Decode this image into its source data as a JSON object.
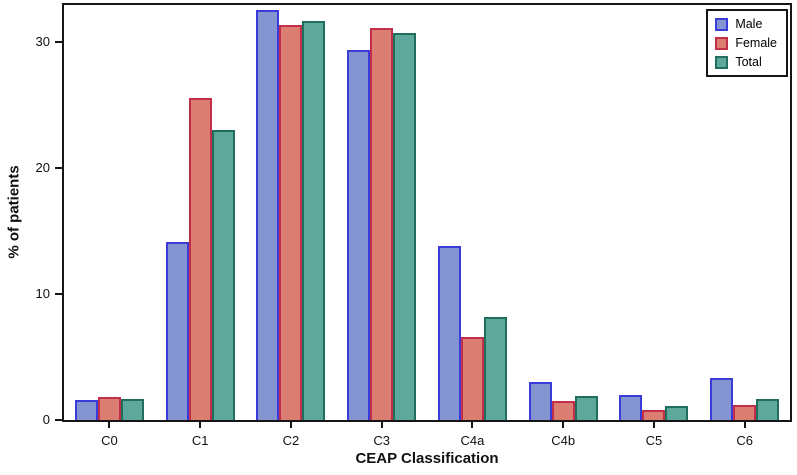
{
  "chart_data": {
    "type": "bar",
    "title": "",
    "xlabel": "CEAP Classification",
    "ylabel": "% of patients",
    "categories": [
      "C0",
      "C1",
      "C2",
      "C3",
      "C4a",
      "C4b",
      "C5",
      "C6"
    ],
    "series": [
      {
        "name": "Male",
        "color_fill": "#8494D1",
        "color_border": "#3B3BDB",
        "values": [
          1.6,
          14.1,
          32.5,
          29.3,
          13.8,
          3.0,
          2.0,
          3.3
        ]
      },
      {
        "name": "Female",
        "color_fill": "#DB7D70",
        "color_border": "#C22F48",
        "values": [
          1.8,
          25.5,
          31.3,
          31.1,
          6.6,
          1.5,
          0.8,
          1.2
        ]
      },
      {
        "name": "Total",
        "color_fill": "#5EA79B",
        "color_border": "#1F6E5E",
        "values": [
          1.7,
          23.0,
          31.6,
          30.7,
          8.2,
          1.9,
          1.1,
          1.7
        ]
      }
    ],
    "ylim": [
      0,
      32.9
    ],
    "yticks": [
      0,
      10,
      20,
      30
    ],
    "grid": false,
    "legend_position": "upper right",
    "frame_color": "#161616",
    "background_color": "#ffffff"
  }
}
